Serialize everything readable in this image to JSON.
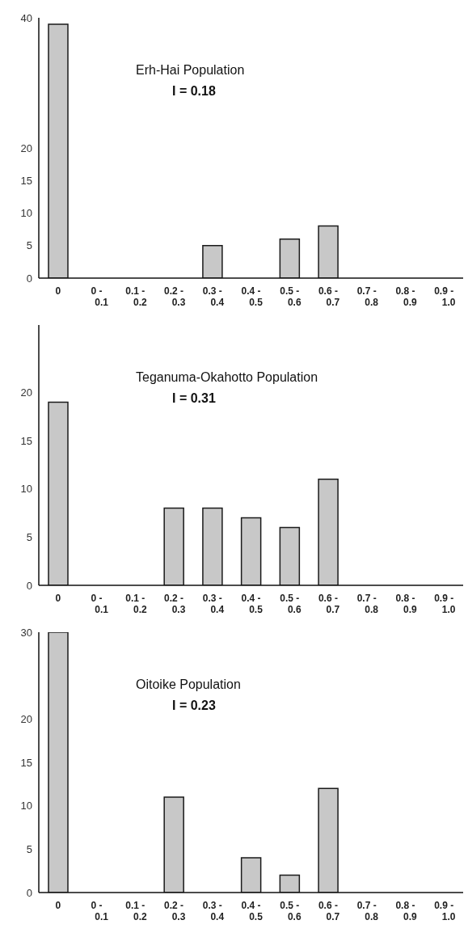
{
  "chart_data": [
    {
      "type": "bar",
      "title": "Erh-Hai Population",
      "annotations": [
        "I = 0.18"
      ],
      "categories": [
        "0",
        "0 -\n0.1",
        "0.1 -\n0.2",
        "0.2 -\n0.3",
        "0.3 -\n0.4",
        "0.4 -\n0.5",
        "0.5 -\n0.6",
        "0.6 -\n0.7",
        "0.7 -\n0.8",
        "0.8 -\n0.9",
        "0.9 -\n1.0"
      ],
      "values": [
        39,
        0,
        0,
        0,
        5,
        0,
        6,
        8,
        0,
        0,
        0
      ],
      "color": "#c8c8c8",
      "ylim": [
        0,
        40
      ],
      "yticks": [
        0,
        5,
        10,
        15,
        20,
        40
      ]
    },
    {
      "type": "bar",
      "title": "Teganuma-Okahotto Population",
      "annotations": [
        "I = 0.31"
      ],
      "categories": [
        "0",
        "0 -\n0.1",
        "0.1 -\n0.2",
        "0.2 -\n0.3",
        "0.3 -\n0.4",
        "0.4 -\n0.5",
        "0.5 -\n0.6",
        "0.6 -\n0.7",
        "0.7 -\n0.8",
        "0.8 -\n0.9",
        "0.9 -\n1.0"
      ],
      "values": [
        19,
        0,
        0,
        8,
        8,
        7,
        6,
        11,
        0,
        0,
        0
      ],
      "color": "#c8c8c8",
      "ylim": [
        0,
        27
      ],
      "yticks": [
        0,
        5,
        10,
        15,
        20
      ]
    },
    {
      "type": "bar",
      "title": "Oitoike Population",
      "annotations": [
        "I = 0.23"
      ],
      "categories": [
        "0",
        "0 -\n0.1",
        "0.1 -\n0.2",
        "0.2 -\n0.3",
        "0.3 -\n0.4",
        "0.4 -\n0.5",
        "0.5 -\n0.6",
        "0.6 -\n0.7",
        "0.7 -\n0.8",
        "0.8 -\n0.9",
        "0.9 -\n1.0"
      ],
      "values": [
        30,
        0,
        0,
        11,
        0,
        4,
        2,
        12,
        0,
        0,
        0
      ],
      "color": "#c8c8c8",
      "ylim": [
        0,
        30
      ],
      "yticks": [
        0,
        5,
        10,
        15,
        20,
        30
      ]
    }
  ]
}
